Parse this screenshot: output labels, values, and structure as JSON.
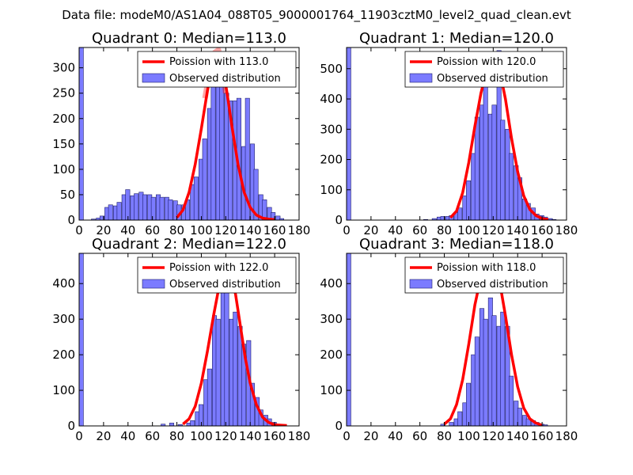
{
  "figure": {
    "suptitle": "Data file: modeM0/AS1A04_088T05_9000001764_11903cztM0_level2_quad_clean.evt"
  },
  "colors": {
    "bar_fill": "#7b7bff",
    "bar_edge": "#1e1e6e",
    "model_line": "#ff0000",
    "axis": "#000000"
  },
  "chart_data": [
    {
      "type": "bar",
      "title": "Quadrant 0: Median=113.0",
      "xlabel": "",
      "ylabel": "",
      "xlim": [
        0,
        180
      ],
      "ylim": [
        0,
        340
      ],
      "xticks": [
        0,
        20,
        40,
        60,
        80,
        100,
        120,
        140,
        160,
        180
      ],
      "yticks": [
        0,
        50,
        100,
        150,
        200,
        250,
        300
      ],
      "legend": {
        "position": "top-right",
        "entries": [
          "Poission with 113.0",
          "Observed distribution"
        ]
      },
      "bin_width": 3.5,
      "bins": [
        [
          0,
          340
        ],
        [
          10,
          2
        ],
        [
          14,
          4
        ],
        [
          17,
          8
        ],
        [
          21,
          25
        ],
        [
          24,
          30
        ],
        [
          28,
          28
        ],
        [
          31,
          35
        ],
        [
          35,
          50
        ],
        [
          38,
          60
        ],
        [
          42,
          48
        ],
        [
          45,
          52
        ],
        [
          49,
          55
        ],
        [
          52,
          50
        ],
        [
          56,
          50
        ],
        [
          59,
          45
        ],
        [
          63,
          50
        ],
        [
          66,
          45
        ],
        [
          70,
          45
        ],
        [
          73,
          40
        ],
        [
          77,
          38
        ],
        [
          80,
          30
        ],
        [
          84,
          30
        ],
        [
          87,
          40
        ],
        [
          91,
          70
        ],
        [
          94,
          85
        ],
        [
          98,
          120
        ],
        [
          101,
          160
        ],
        [
          105,
          220
        ],
        [
          108,
          270
        ],
        [
          112,
          285
        ],
        [
          115,
          280
        ],
        [
          119,
          250
        ],
        [
          122,
          235
        ],
        [
          126,
          235
        ],
        [
          129,
          240
        ],
        [
          133,
          145
        ],
        [
          136,
          240
        ],
        [
          140,
          150
        ],
        [
          143,
          100
        ],
        [
          147,
          50
        ],
        [
          150,
          40
        ],
        [
          154,
          25
        ],
        [
          157,
          15
        ],
        [
          161,
          8
        ],
        [
          164,
          3
        ]
      ],
      "model": {
        "name": "Poission with 113.0",
        "x": [
          80,
          85,
          90,
          95,
          100,
          105,
          108,
          111,
          113,
          116,
          119,
          122,
          125,
          130,
          135,
          140,
          145,
          150,
          155,
          160
        ],
        "y": [
          5,
          20,
          55,
          110,
          180,
          255,
          295,
          320,
          325,
          310,
          280,
          235,
          185,
          110,
          55,
          25,
          10,
          4,
          2,
          1
        ]
      },
      "model_haze": {
        "x": [
          103,
          107,
          111,
          114,
          117,
          120
        ],
        "y": [
          240,
          295,
          330,
          335,
          300,
          250
        ]
      }
    },
    {
      "type": "bar",
      "title": "Quadrant 1: Median=120.0",
      "xlabel": "",
      "ylabel": "",
      "xlim": [
        0,
        180
      ],
      "ylim": [
        0,
        570
      ],
      "xticks": [
        0,
        20,
        40,
        60,
        80,
        100,
        120,
        140,
        160,
        180
      ],
      "yticks": [
        0,
        100,
        200,
        300,
        400,
        500
      ],
      "legend": {
        "position": "top-right",
        "entries": [
          "Poission with 120.0",
          "Observed distribution"
        ]
      },
      "bin_width": 3.5,
      "bins": [
        [
          0,
          570
        ],
        [
          63,
          2
        ],
        [
          70,
          5
        ],
        [
          74,
          10
        ],
        [
          77,
          12
        ],
        [
          81,
          12
        ],
        [
          84,
          15
        ],
        [
          88,
          25
        ],
        [
          91,
          40
        ],
        [
          95,
          80
        ],
        [
          98,
          130
        ],
        [
          102,
          220
        ],
        [
          105,
          340
        ],
        [
          109,
          380
        ],
        [
          112,
          460
        ],
        [
          116,
          350
        ],
        [
          119,
          380
        ],
        [
          123,
          560
        ],
        [
          126,
          330
        ],
        [
          130,
          300
        ],
        [
          133,
          220
        ],
        [
          137,
          180
        ],
        [
          140,
          140
        ],
        [
          144,
          70
        ],
        [
          147,
          55
        ],
        [
          151,
          40
        ],
        [
          154,
          20
        ],
        [
          158,
          15
        ],
        [
          161,
          10
        ],
        [
          165,
          5
        ],
        [
          168,
          2
        ]
      ],
      "model": {
        "name": "Poission with 120.0",
        "x": [
          85,
          90,
          95,
          100,
          105,
          110,
          115,
          118,
          120,
          122,
          125,
          130,
          135,
          140,
          145,
          150,
          155,
          160,
          165
        ],
        "y": [
          8,
          30,
          90,
          190,
          310,
          420,
          500,
          530,
          540,
          535,
          500,
          400,
          270,
          160,
          80,
          35,
          15,
          5,
          2
        ]
      },
      "model_haze": {
        "x": [
          112,
          116,
          120,
          124,
          128
        ],
        "y": [
          450,
          515,
          540,
          515,
          455
        ]
      }
    },
    {
      "type": "bar",
      "title": "Quadrant 2: Median=122.0",
      "xlabel": "",
      "ylabel": "",
      "xlim": [
        0,
        180
      ],
      "ylim": [
        0,
        485
      ],
      "xticks": [
        0,
        20,
        40,
        60,
        80,
        100,
        120,
        140,
        160,
        180
      ],
      "yticks": [
        0,
        100,
        200,
        300,
        400
      ],
      "legend": {
        "position": "top-right",
        "entries": [
          "Poission with 122.0",
          "Observed distribution"
        ]
      },
      "bin_width": 3.5,
      "bins": [
        [
          0,
          485
        ],
        [
          67,
          5
        ],
        [
          74,
          8
        ],
        [
          81,
          4
        ],
        [
          88,
          8
        ],
        [
          91,
          15
        ],
        [
          95,
          40
        ],
        [
          98,
          60
        ],
        [
          102,
          130
        ],
        [
          105,
          160
        ],
        [
          109,
          310
        ],
        [
          112,
          300
        ],
        [
          116,
          380
        ],
        [
          119,
          390
        ],
        [
          123,
          300
        ],
        [
          126,
          320
        ],
        [
          130,
          280
        ],
        [
          133,
          230
        ],
        [
          137,
          240
        ],
        [
          140,
          120
        ],
        [
          144,
          80
        ],
        [
          147,
          45
        ],
        [
          151,
          30
        ],
        [
          154,
          20
        ],
        [
          158,
          10
        ],
        [
          161,
          5
        ],
        [
          165,
          3
        ]
      ],
      "model": {
        "name": "Poission with 122.0",
        "x": [
          85,
          90,
          95,
          100,
          105,
          110,
          115,
          120,
          122,
          124,
          128,
          132,
          136,
          140,
          145,
          150,
          155,
          160,
          170
        ],
        "y": [
          5,
          20,
          55,
          120,
          210,
          310,
          400,
          440,
          445,
          430,
          370,
          280,
          190,
          120,
          60,
          25,
          10,
          3,
          1
        ]
      },
      "model_haze": {
        "x": [
          114,
          118,
          122,
          126,
          130
        ],
        "y": [
          390,
          430,
          450,
          430,
          385
        ]
      }
    },
    {
      "type": "bar",
      "title": "Quadrant 3: Median=118.0",
      "xlabel": "",
      "ylabel": "",
      "xlim": [
        0,
        180
      ],
      "ylim": [
        0,
        485
      ],
      "xticks": [
        0,
        20,
        40,
        60,
        80,
        100,
        120,
        140,
        160,
        180
      ],
      "yticks": [
        0,
        100,
        200,
        300,
        400
      ],
      "legend": {
        "position": "top-right",
        "entries": [
          "Poission with 118.0",
          "Observed distribution"
        ]
      },
      "bin_width": 3.5,
      "bins": [
        [
          0,
          485
        ],
        [
          77,
          5
        ],
        [
          84,
          10
        ],
        [
          88,
          20
        ],
        [
          91,
          40
        ],
        [
          95,
          65
        ],
        [
          98,
          120
        ],
        [
          102,
          200
        ],
        [
          105,
          250
        ],
        [
          109,
          330
        ],
        [
          112,
          300
        ],
        [
          116,
          360
        ],
        [
          119,
          310
        ],
        [
          123,
          280
        ],
        [
          126,
          320
        ],
        [
          130,
          280
        ],
        [
          133,
          140
        ],
        [
          137,
          70
        ],
        [
          140,
          50
        ],
        [
          144,
          30
        ],
        [
          147,
          20
        ],
        [
          151,
          15
        ],
        [
          154,
          10
        ],
        [
          158,
          5
        ],
        [
          161,
          3
        ]
      ],
      "model": {
        "name": "Poission with 118.0",
        "x": [
          80,
          85,
          90,
          95,
          100,
          105,
          110,
          115,
          118,
          121,
          125,
          130,
          135,
          140,
          145,
          150,
          155,
          160
        ],
        "y": [
          5,
          20,
          60,
          130,
          230,
          340,
          420,
          455,
          460,
          450,
          410,
          310,
          200,
          110,
          50,
          20,
          8,
          2
        ]
      },
      "model_haze": {
        "x": [
          110,
          114,
          118,
          122,
          126
        ],
        "y": [
          400,
          445,
          460,
          445,
          400
        ]
      }
    }
  ]
}
